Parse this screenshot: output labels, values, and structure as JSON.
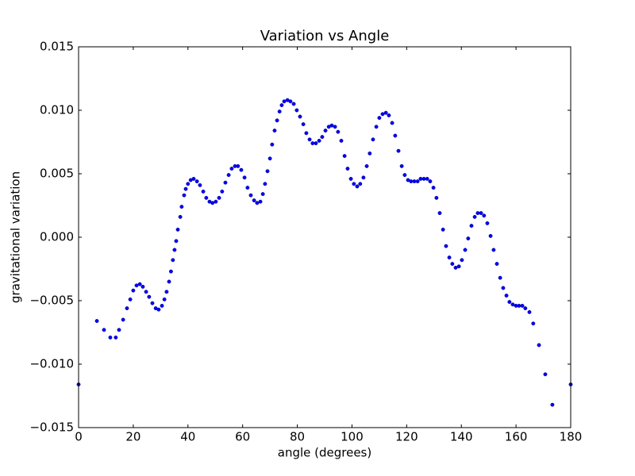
{
  "chart_data": {
    "type": "scatter",
    "title": "Variation vs Angle",
    "x_label": "angle (degrees)",
    "y_label": "gravitational variation",
    "xlim": [
      0,
      180
    ],
    "ylim": [
      -0.015,
      0.015
    ],
    "xticks": [
      0,
      20,
      40,
      60,
      80,
      100,
      120,
      140,
      160,
      180
    ],
    "yticks": [
      {
        "value": -0.015,
        "label": "−0.015"
      },
      {
        "value": -0.01,
        "label": "−0.010"
      },
      {
        "value": -0.005,
        "label": "−0.005"
      },
      {
        "value": 0,
        "label": "0.000"
      },
      {
        "value": 0.005,
        "label": "0.005"
      },
      {
        "value": 0.01,
        "label": "0.010"
      },
      {
        "value": 0.015,
        "label": "0.015"
      }
    ],
    "series": [
      {
        "color": "#0000ff",
        "x": [
          0,
          6.7,
          9.3,
          11.6,
          13.6,
          14.8,
          16.3,
          17.7,
          18.9,
          20,
          21.2,
          22.4,
          23.5,
          24.7,
          25.8,
          27,
          28.2,
          29.3,
          30.5,
          31.4,
          32.2,
          33.1,
          33.8,
          34.5,
          35.1,
          35.7,
          36.3,
          37.2,
          37.7,
          38.6,
          39.2,
          40,
          41,
          42.1,
          43.3,
          44.4,
          45.6,
          46.7,
          47.9,
          49,
          50.2,
          51.4,
          52.5,
          53.7,
          54.9,
          56,
          57.2,
          58.3,
          59.5,
          60.7,
          61.8,
          63,
          64.2,
          65.3,
          66.5,
          67.4,
          68.2,
          69.1,
          70,
          70.8,
          71.7,
          72.6,
          73.5,
          74.3,
          75.2,
          76.4,
          77.5,
          78.7,
          79.8,
          81,
          82.2,
          83.3,
          84.5,
          85.6,
          86.8,
          88,
          89.1,
          90.3,
          91.5,
          92.6,
          93.8,
          94.9,
          96.1,
          97.3,
          98.4,
          99.6,
          100.7,
          101.9,
          103,
          104.2,
          105.4,
          106.5,
          107.7,
          108.9,
          110,
          111.2,
          112.4,
          113.5,
          114.7,
          115.8,
          117,
          118.2,
          119.3,
          120.5,
          121.6,
          122.8,
          124,
          125.1,
          126.3,
          127.5,
          128.6,
          129.8,
          130.9,
          132.1,
          133.3,
          134.4,
          135.6,
          136.7,
          137.9,
          139.1,
          140.2,
          141.4,
          142.5,
          143.7,
          144.9,
          146,
          147.2,
          148.3,
          149.5,
          150.7,
          151.8,
          153,
          154.2,
          155.3,
          156.5,
          157.6,
          158.8,
          160,
          161.1,
          162.3,
          163.4,
          164.9,
          166.3,
          168.4,
          170.7,
          173.3,
          180
        ],
        "values": [
          -0.0116,
          -0.0066,
          -0.0073,
          -0.0079,
          -0.0079,
          -0.0073,
          -0.0065,
          -0.0056,
          -0.0049,
          -0.0042,
          -0.0038,
          -0.0037,
          -0.0039,
          -0.0043,
          -0.0047,
          -0.0052,
          -0.0056,
          -0.0057,
          -0.0054,
          -0.0049,
          -0.0043,
          -0.0035,
          -0.0027,
          -0.0018,
          -0.001,
          -0.0003,
          0.0006,
          0.0016,
          0.0024,
          0.0033,
          0.0038,
          0.0042,
          0.0045,
          0.0046,
          0.0044,
          0.0041,
          0.0036,
          0.0031,
          0.0028,
          0.0027,
          0.0028,
          0.0031,
          0.0036,
          0.0043,
          0.0049,
          0.0054,
          0.0056,
          0.0056,
          0.0053,
          0.0047,
          0.0039,
          0.0033,
          0.0029,
          0.0027,
          0.0028,
          0.0034,
          0.0042,
          0.0052,
          0.0062,
          0.0073,
          0.0084,
          0.0092,
          0.0099,
          0.0104,
          0.0107,
          0.0108,
          0.0107,
          0.0105,
          0.01,
          0.0095,
          0.0089,
          0.0082,
          0.0077,
          0.0074,
          0.0074,
          0.0076,
          0.0079,
          0.0084,
          0.0087,
          0.0088,
          0.0087,
          0.0083,
          0.0076,
          0.0064,
          0.0054,
          0.0046,
          0.0042,
          0.004,
          0.0042,
          0.0047,
          0.0056,
          0.0066,
          0.0077,
          0.0087,
          0.0094,
          0.0097,
          0.0098,
          0.0096,
          0.009,
          0.008,
          0.0068,
          0.0056,
          0.0049,
          0.0045,
          0.0044,
          0.0044,
          0.0044,
          0.0046,
          0.0046,
          0.0046,
          0.0044,
          0.0039,
          0.0031,
          0.0019,
          0.0006,
          -0.0007,
          -0.0016,
          -0.0021,
          -0.0024,
          -0.0023,
          -0.0018,
          -0.001,
          -0.0001,
          0.0009,
          0.0016,
          0.0019,
          0.0019,
          0.0017,
          0.0011,
          0.0001,
          -0.001,
          -0.0021,
          -0.0032,
          -0.004,
          -0.0046,
          -0.0051,
          -0.0053,
          -0.0054,
          -0.0054,
          -0.0054,
          -0.0056,
          -0.0059,
          -0.0068,
          -0.0085,
          -0.0108,
          -0.0132,
          -0.0116
        ]
      }
    ]
  }
}
